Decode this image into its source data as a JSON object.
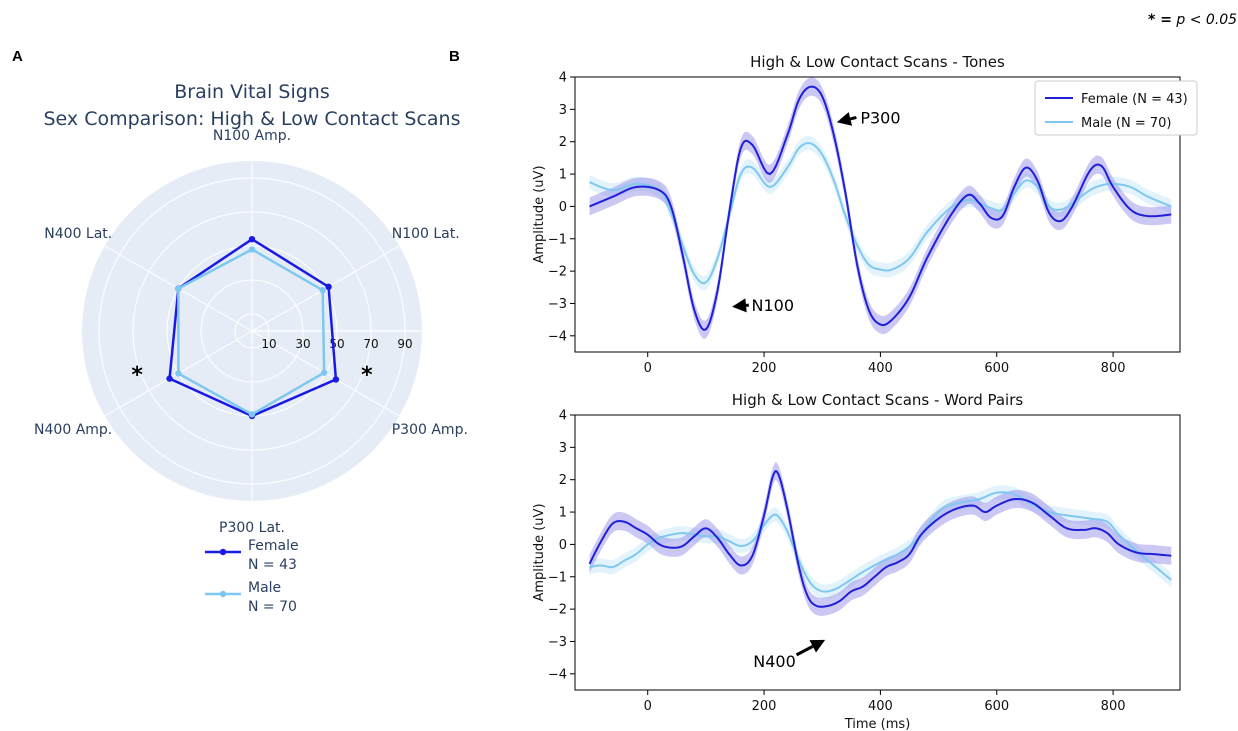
{
  "significance_note": {
    "star": "* =",
    "text": "p < 0.05"
  },
  "panel_labels": {
    "a": "A",
    "b": "B"
  },
  "chart_data": [
    {
      "type": "radar",
      "panel": "A",
      "title_line1": "Brain Vital Signs",
      "title_line2": "Sex Comparison: High & Low Contact Scans",
      "axes": [
        "N100 Amp.",
        "N100 Lat.",
        "P300 Amp.",
        "P300 Lat.",
        "N400 Amp.",
        "N400 Lat."
      ],
      "radial_ticks": [
        10,
        30,
        50,
        70,
        90
      ],
      "radial_range": [
        0,
        100
      ],
      "significant_axes": [
        "P300 Amp.",
        "N400 Amp."
      ],
      "significance_marker": "*",
      "legend_position": "bottom",
      "series": [
        {
          "name": "Female",
          "n_label": "N = 43",
          "color": "#1a1ae6",
          "values": [
            54,
            52,
            57,
            50,
            56,
            50
          ]
        },
        {
          "name": "Male",
          "n_label": "N = 70",
          "color": "#7ec8f0",
          "values": [
            48,
            48,
            49,
            49,
            50,
            50
          ]
        }
      ]
    },
    {
      "type": "line",
      "panel": "B-top",
      "title": "High & Low Contact Scans - Tones",
      "ylabel": "Amplitude (uV)",
      "xlabel": "",
      "xlim": [
        -125,
        915
      ],
      "ylim": [
        -4.5,
        4
      ],
      "xticks": [
        0,
        200,
        400,
        600,
        800
      ],
      "yticks": [
        -4,
        -3,
        -2,
        -1,
        0,
        1,
        2,
        3,
        4
      ],
      "legend_position": "top-right",
      "series": [
        {
          "name": "Female (N = 43)",
          "color": "#2020d8",
          "band_color": "#8f86e6",
          "points": [
            [
              -100,
              0.0
            ],
            [
              -60,
              0.3
            ],
            [
              -20,
              0.6
            ],
            [
              20,
              0.5
            ],
            [
              40,
              0.0
            ],
            [
              60,
              -1.5
            ],
            [
              80,
              -3.2
            ],
            [
              100,
              -3.8
            ],
            [
              120,
              -2.6
            ],
            [
              140,
              -0.2
            ],
            [
              160,
              1.8
            ],
            [
              180,
              1.9
            ],
            [
              210,
              1.0
            ],
            [
              240,
              2.2
            ],
            [
              260,
              3.3
            ],
            [
              280,
              3.7
            ],
            [
              300,
              3.4
            ],
            [
              320,
              2.2
            ],
            [
              340,
              0.4
            ],
            [
              360,
              -1.8
            ],
            [
              380,
              -3.2
            ],
            [
              400,
              -3.65
            ],
            [
              420,
              -3.5
            ],
            [
              450,
              -2.8
            ],
            [
              480,
              -1.6
            ],
            [
              520,
              -0.3
            ],
            [
              550,
              0.35
            ],
            [
              570,
              0.1
            ],
            [
              590,
              -0.35
            ],
            [
              610,
              -0.3
            ],
            [
              630,
              0.6
            ],
            [
              650,
              1.2
            ],
            [
              670,
              0.8
            ],
            [
              690,
              -0.2
            ],
            [
              710,
              -0.45
            ],
            [
              730,
              0.0
            ],
            [
              760,
              1.1
            ],
            [
              780,
              1.25
            ],
            [
              800,
              0.6
            ],
            [
              830,
              -0.1
            ],
            [
              860,
              -0.3
            ],
            [
              900,
              -0.25
            ]
          ]
        },
        {
          "name": "Male (N = 70)",
          "color": "#80c8f0",
          "band_color": "#c0e4f8",
          "points": [
            [
              -100,
              0.75
            ],
            [
              -60,
              0.5
            ],
            [
              -20,
              0.7
            ],
            [
              20,
              0.5
            ],
            [
              40,
              -0.2
            ],
            [
              60,
              -1.2
            ],
            [
              80,
              -2.1
            ],
            [
              100,
              -2.35
            ],
            [
              120,
              -1.6
            ],
            [
              140,
              -0.3
            ],
            [
              160,
              1.0
            ],
            [
              180,
              1.2
            ],
            [
              210,
              0.6
            ],
            [
              240,
              1.2
            ],
            [
              260,
              1.8
            ],
            [
              280,
              1.95
            ],
            [
              300,
              1.6
            ],
            [
              320,
              0.8
            ],
            [
              340,
              -0.3
            ],
            [
              360,
              -1.2
            ],
            [
              380,
              -1.8
            ],
            [
              400,
              -1.95
            ],
            [
              420,
              -1.95
            ],
            [
              450,
              -1.6
            ],
            [
              480,
              -0.8
            ],
            [
              520,
              -0.05
            ],
            [
              550,
              0.2
            ],
            [
              570,
              0.1
            ],
            [
              590,
              -0.05
            ],
            [
              610,
              -0.1
            ],
            [
              630,
              0.4
            ],
            [
              650,
              0.8
            ],
            [
              670,
              0.6
            ],
            [
              690,
              0.0
            ],
            [
              710,
              -0.1
            ],
            [
              730,
              0.1
            ],
            [
              760,
              0.5
            ],
            [
              780,
              0.65
            ],
            [
              800,
              0.7
            ],
            [
              830,
              0.6
            ],
            [
              860,
              0.3
            ],
            [
              900,
              0.0
            ]
          ]
        }
      ],
      "annotations": [
        {
          "text": "P300",
          "x": 400,
          "y": 2.75,
          "arrow_to": [
            325,
            2.6
          ]
        },
        {
          "text": "N100",
          "x": 215,
          "y": -3.05,
          "arrow_to": [
            145,
            -3.1
          ]
        }
      ]
    },
    {
      "type": "line",
      "panel": "B-bottom",
      "title": "High & Low Contact Scans - Word Pairs",
      "ylabel": "Amplitude (uV)",
      "xlabel": "Time (ms)",
      "xlim": [
        -125,
        915
      ],
      "ylim": [
        -4.5,
        4
      ],
      "xticks": [
        0,
        200,
        400,
        600,
        800
      ],
      "yticks": [
        -4,
        -3,
        -2,
        -1,
        0,
        1,
        2,
        3,
        4
      ],
      "series": [
        {
          "name": "Female (N = 43)",
          "color": "#2020d8",
          "band_color": "#8f86e6",
          "points": [
            [
              -100,
              -0.6
            ],
            [
              -80,
              0.1
            ],
            [
              -60,
              0.65
            ],
            [
              -40,
              0.7
            ],
            [
              -20,
              0.5
            ],
            [
              0,
              0.3
            ],
            [
              20,
              0.0
            ],
            [
              40,
              -0.1
            ],
            [
              60,
              -0.05
            ],
            [
              80,
              0.25
            ],
            [
              100,
              0.5
            ],
            [
              120,
              0.2
            ],
            [
              140,
              -0.3
            ],
            [
              160,
              -0.65
            ],
            [
              180,
              -0.35
            ],
            [
              200,
              0.9
            ],
            [
              215,
              2.1
            ],
            [
              225,
              2.15
            ],
            [
              240,
              1.1
            ],
            [
              260,
              -0.7
            ],
            [
              275,
              -1.6
            ],
            [
              290,
              -1.9
            ],
            [
              310,
              -1.9
            ],
            [
              330,
              -1.75
            ],
            [
              350,
              -1.45
            ],
            [
              370,
              -1.3
            ],
            [
              390,
              -1.0
            ],
            [
              410,
              -0.7
            ],
            [
              430,
              -0.55
            ],
            [
              450,
              -0.3
            ],
            [
              470,
              0.3
            ],
            [
              500,
              0.8
            ],
            [
              530,
              1.1
            ],
            [
              560,
              1.2
            ],
            [
              580,
              1.0
            ],
            [
              600,
              1.2
            ],
            [
              630,
              1.4
            ],
            [
              660,
              1.3
            ],
            [
              690,
              0.9
            ],
            [
              720,
              0.5
            ],
            [
              750,
              0.45
            ],
            [
              770,
              0.5
            ],
            [
              790,
              0.35
            ],
            [
              810,
              0.0
            ],
            [
              840,
              -0.25
            ],
            [
              870,
              -0.3
            ],
            [
              900,
              -0.35
            ]
          ]
        },
        {
          "name": "Male (N = 70)",
          "color": "#80c8f0",
          "band_color": "#c0e4f8",
          "points": [
            [
              -100,
              -0.7
            ],
            [
              -80,
              -0.65
            ],
            [
              -60,
              -0.7
            ],
            [
              -40,
              -0.5
            ],
            [
              -20,
              -0.3
            ],
            [
              0,
              0.0
            ],
            [
              20,
              0.2
            ],
            [
              40,
              0.3
            ],
            [
              60,
              0.35
            ],
            [
              80,
              0.3
            ],
            [
              100,
              0.25
            ],
            [
              120,
              0.25
            ],
            [
              140,
              0.1
            ],
            [
              160,
              -0.05
            ],
            [
              180,
              0.1
            ],
            [
              200,
              0.6
            ],
            [
              215,
              0.9
            ],
            [
              225,
              0.85
            ],
            [
              240,
              0.4
            ],
            [
              260,
              -0.5
            ],
            [
              280,
              -1.2
            ],
            [
              300,
              -1.45
            ],
            [
              320,
              -1.4
            ],
            [
              340,
              -1.2
            ],
            [
              370,
              -0.85
            ],
            [
              400,
              -0.55
            ],
            [
              430,
              -0.3
            ],
            [
              460,
              0.1
            ],
            [
              490,
              0.8
            ],
            [
              510,
              1.15
            ],
            [
              540,
              1.3
            ],
            [
              570,
              1.4
            ],
            [
              600,
              1.6
            ],
            [
              630,
              1.55
            ],
            [
              660,
              1.25
            ],
            [
              690,
              1.0
            ],
            [
              720,
              0.9
            ],
            [
              760,
              0.8
            ],
            [
              790,
              0.7
            ],
            [
              810,
              0.3
            ],
            [
              840,
              -0.2
            ],
            [
              870,
              -0.65
            ],
            [
              900,
              -1.1
            ]
          ]
        }
      ],
      "annotations": [
        {
          "text": "N400",
          "x": 218,
          "y": -3.6,
          "arrow_to": [
            305,
            -2.95
          ]
        }
      ]
    }
  ]
}
